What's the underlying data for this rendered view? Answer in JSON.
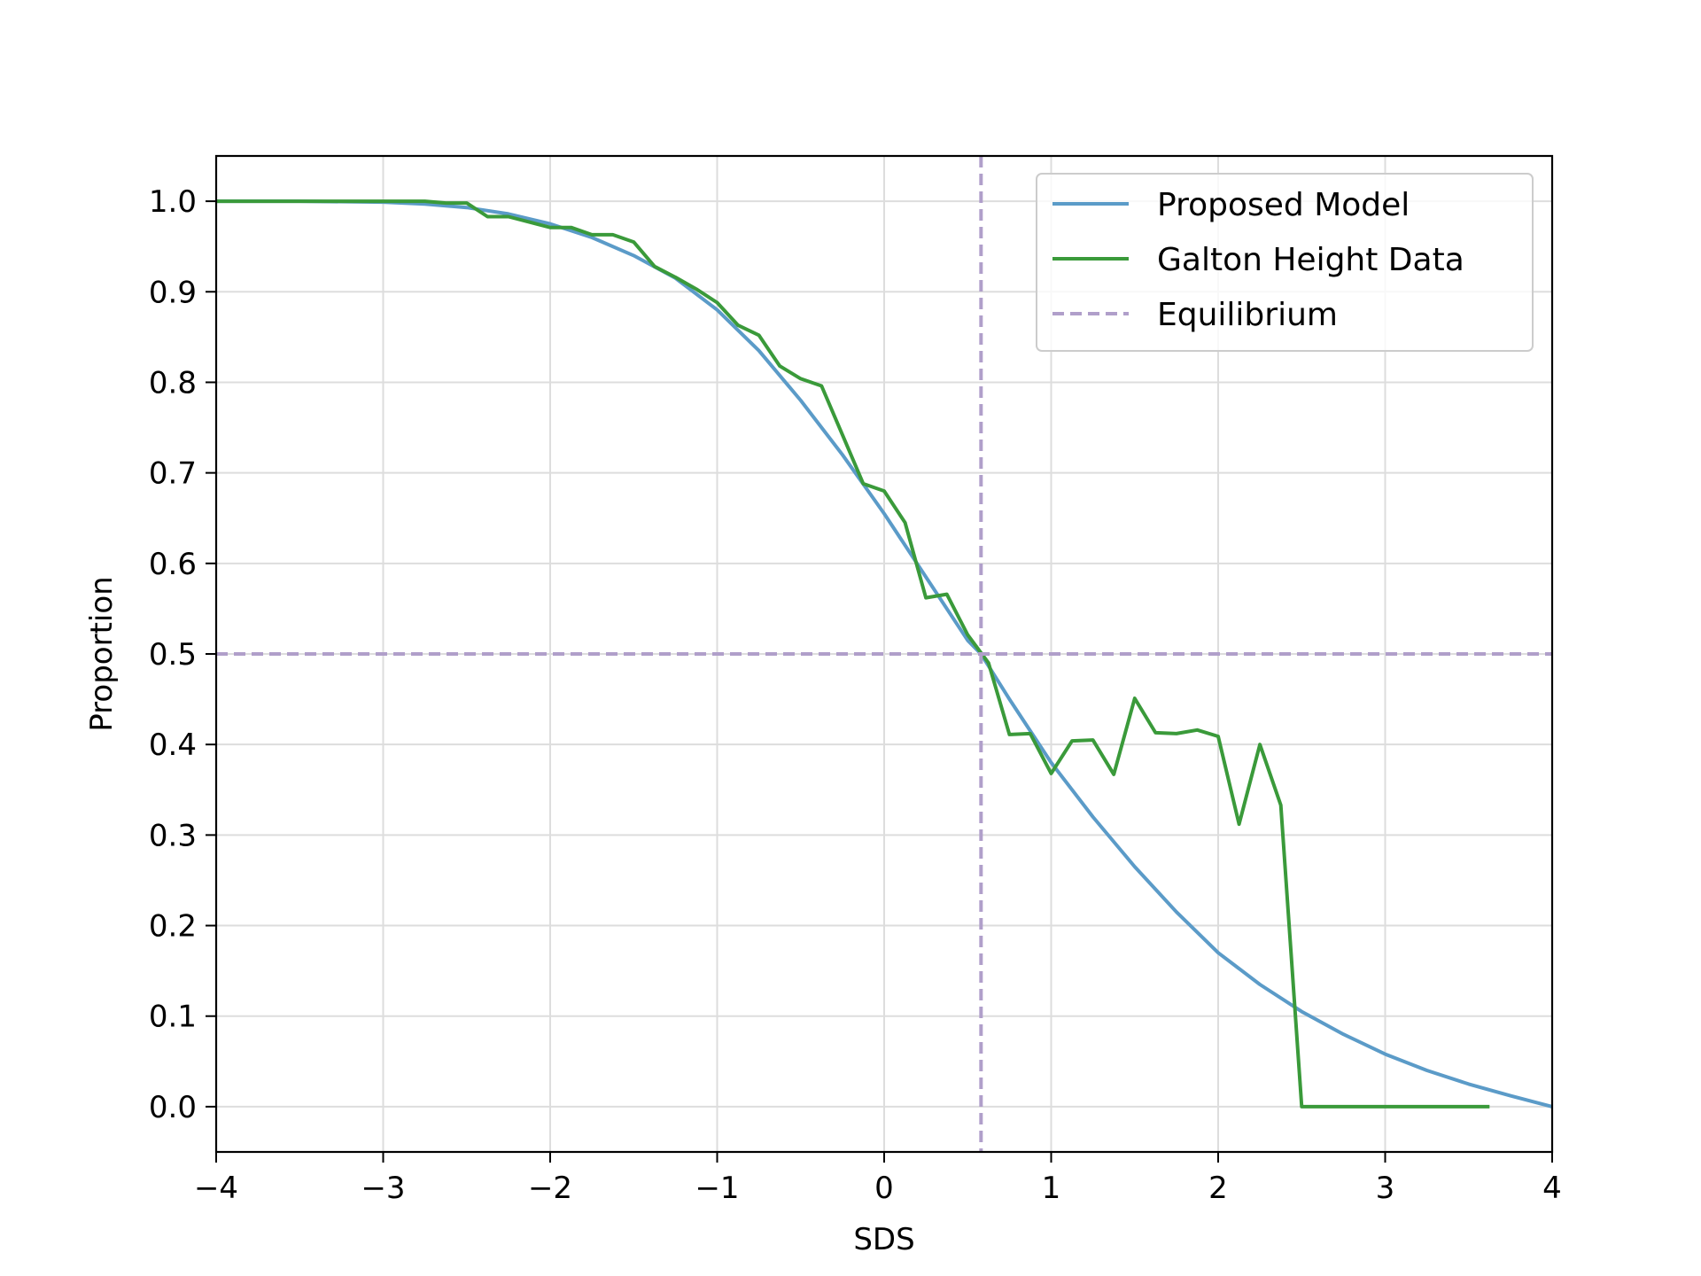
{
  "chart_data": {
    "type": "line",
    "title": "",
    "xlabel": "SDS",
    "ylabel": "Proportion",
    "xlim": [
      -4,
      4
    ],
    "ylim": [
      -0.05,
      1.05
    ],
    "xticks": [
      -4,
      -3,
      -2,
      -1,
      0,
      1,
      2,
      3,
      4
    ],
    "xtick_labels": [
      "−4",
      "−3",
      "−2",
      "−1",
      "0",
      "1",
      "2",
      "3",
      "4"
    ],
    "yticks": [
      0.0,
      0.1,
      0.2,
      0.3,
      0.4,
      0.5,
      0.6,
      0.7,
      0.8,
      0.9,
      1.0
    ],
    "ytick_labels": [
      "0.0",
      "0.1",
      "0.2",
      "0.3",
      "0.4",
      "0.5",
      "0.6",
      "0.7",
      "0.8",
      "0.9",
      "1.0"
    ],
    "grid": true,
    "legend_position": "top-right",
    "series": [
      {
        "name": "Proposed Model",
        "color": "#5b9bc8",
        "style": "solid",
        "x": [
          -4,
          -3.5,
          -3,
          -2.75,
          -2.5,
          -2.25,
          -2,
          -1.75,
          -1.5,
          -1.25,
          -1,
          -0.75,
          -0.5,
          -0.25,
          0,
          0.25,
          0.5,
          0.58,
          0.75,
          1,
          1.25,
          1.5,
          1.75,
          2,
          2.25,
          2.5,
          2.75,
          3,
          3.25,
          3.5,
          3.75,
          4
        ],
        "y": [
          1.0,
          1.0,
          0.999,
          0.997,
          0.993,
          0.986,
          0.975,
          0.96,
          0.94,
          0.915,
          0.88,
          0.835,
          0.78,
          0.72,
          0.655,
          0.585,
          0.515,
          0.5,
          0.45,
          0.38,
          0.32,
          0.265,
          0.215,
          0.17,
          0.135,
          0.105,
          0.08,
          0.058,
          0.04,
          0.025,
          0.012,
          0.0
        ]
      },
      {
        "name": "Galton Height Data",
        "color": "#3a9a3a",
        "style": "solid",
        "x": [
          -4,
          -3.5,
          -3,
          -2.75,
          -2.625,
          -2.5,
          -2.375,
          -2.25,
          -2.125,
          -2,
          -1.875,
          -1.75,
          -1.625,
          -1.5,
          -1.375,
          -1.25,
          -1.125,
          -1,
          -0.875,
          -0.75,
          -0.625,
          -0.5,
          -0.375,
          -0.25,
          -0.125,
          0,
          0.125,
          0.25,
          0.375,
          0.5,
          0.625,
          0.75,
          0.875,
          1,
          1.125,
          1.25,
          1.375,
          1.5,
          1.625,
          1.75,
          1.875,
          2,
          2.125,
          2.25,
          2.375,
          2.5,
          2.75,
          3,
          3.25,
          3.5,
          3.625
        ],
        "y": [
          1.0,
          1.0,
          1.0,
          1.0,
          0.998,
          0.998,
          0.983,
          0.983,
          0.977,
          0.971,
          0.971,
          0.963,
          0.963,
          0.955,
          0.928,
          0.916,
          0.903,
          0.888,
          0.863,
          0.852,
          0.818,
          0.804,
          0.796,
          0.742,
          0.688,
          0.68,
          0.645,
          0.562,
          0.566,
          0.521,
          0.49,
          0.411,
          0.412,
          0.368,
          0.404,
          0.405,
          0.367,
          0.451,
          0.413,
          0.412,
          0.416,
          0.409,
          0.312,
          0.4,
          0.333,
          0.0,
          0.0,
          0.0,
          0.0,
          0.0,
          0.0
        ]
      },
      {
        "name": "Equilibrium",
        "color": "#b09fca",
        "style": "dashed",
        "hline_y": 0.5,
        "vline_x": 0.58
      }
    ]
  }
}
